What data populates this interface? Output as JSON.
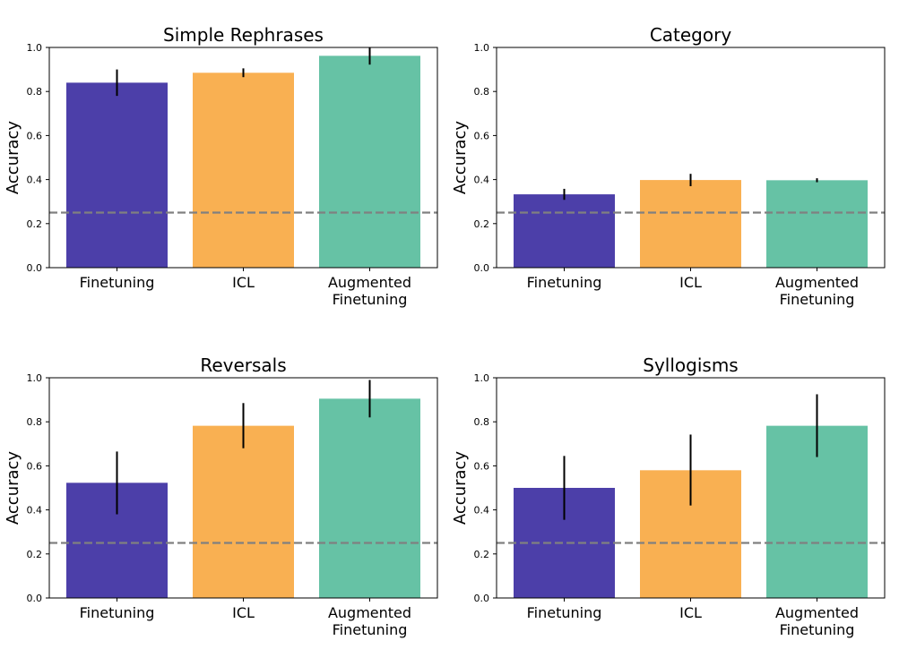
{
  "chart_data": [
    {
      "type": "bar",
      "title": "Simple Rephrases",
      "ylabel": "Accuracy",
      "ylim": [
        0,
        1.0
      ],
      "yticks": [
        "0.0",
        "0.2",
        "0.4",
        "0.6",
        "0.8",
        "1.0"
      ],
      "categories": [
        "Finetuning",
        "ICL",
        "Augmented Finetuning"
      ],
      "category_lines": [
        [
          "Finetuning"
        ],
        [
          "ICL"
        ],
        [
          "Augmented",
          "Finetuning"
        ]
      ],
      "values": [
        0.84,
        0.885,
        0.962
      ],
      "error_low": [
        0.78,
        0.865,
        0.922
      ],
      "error_high": [
        0.9,
        0.905,
        1.0
      ],
      "colors": [
        "#4c3fa9",
        "#f9b052",
        "#66c2a5"
      ],
      "baseline": 0.25,
      "grid": false
    },
    {
      "type": "bar",
      "title": "Category",
      "ylabel": "Accuracy",
      "ylim": [
        0,
        1.0
      ],
      "yticks": [
        "0.0",
        "0.2",
        "0.4",
        "0.6",
        "0.8",
        "1.0"
      ],
      "categories": [
        "Finetuning",
        "ICL",
        "Augmented Finetuning"
      ],
      "category_lines": [
        [
          "Finetuning"
        ],
        [
          "ICL"
        ],
        [
          "Augmented",
          "Finetuning"
        ]
      ],
      "values": [
        0.333,
        0.398,
        0.397
      ],
      "error_low": [
        0.308,
        0.37,
        0.388
      ],
      "error_high": [
        0.358,
        0.426,
        0.406
      ],
      "colors": [
        "#4c3fa9",
        "#f9b052",
        "#66c2a5"
      ],
      "baseline": 0.25,
      "grid": false
    },
    {
      "type": "bar",
      "title": "Reversals",
      "ylabel": "Accuracy",
      "ylim": [
        0,
        1.0
      ],
      "yticks": [
        "0.0",
        "0.2",
        "0.4",
        "0.6",
        "0.8",
        "1.0"
      ],
      "categories": [
        "Finetuning",
        "ICL",
        "Augmented Finetuning"
      ],
      "category_lines": [
        [
          "Finetuning"
        ],
        [
          "ICL"
        ],
        [
          "Augmented",
          "Finetuning"
        ]
      ],
      "values": [
        0.523,
        0.782,
        0.905
      ],
      "error_low": [
        0.38,
        0.68,
        0.82
      ],
      "error_high": [
        0.665,
        0.885,
        0.99
      ],
      "colors": [
        "#4c3fa9",
        "#f9b052",
        "#66c2a5"
      ],
      "baseline": 0.25,
      "grid": false
    },
    {
      "type": "bar",
      "title": "Syllogisms",
      "ylabel": "Accuracy",
      "ylim": [
        0,
        1.0
      ],
      "yticks": [
        "0.0",
        "0.2",
        "0.4",
        "0.6",
        "0.8",
        "1.0"
      ],
      "categories": [
        "Finetuning",
        "ICL",
        "Augmented Finetuning"
      ],
      "category_lines": [
        [
          "Finetuning"
        ],
        [
          "ICL"
        ],
        [
          "Augmented",
          "Finetuning"
        ]
      ],
      "values": [
        0.5,
        0.58,
        0.782
      ],
      "error_low": [
        0.355,
        0.42,
        0.64
      ],
      "error_high": [
        0.645,
        0.742,
        0.925
      ],
      "colors": [
        "#4c3fa9",
        "#f9b052",
        "#66c2a5"
      ],
      "baseline": 0.25,
      "grid": false
    }
  ]
}
